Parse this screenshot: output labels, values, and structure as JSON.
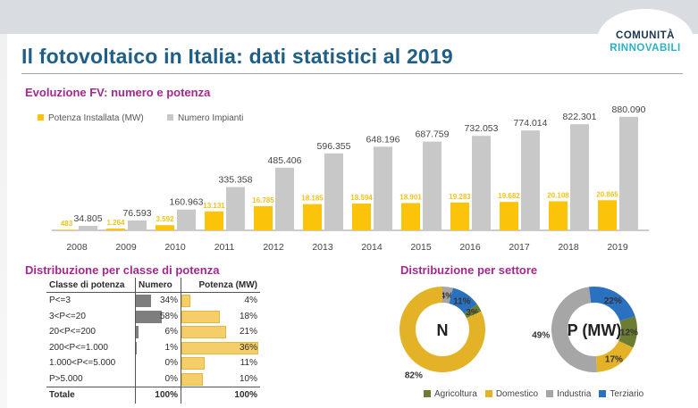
{
  "title": "Il fotovoltaico in Italia: dati statistici al 2019",
  "logo": {
    "line1": "COMUNITÀ",
    "line2": "RINNOVABILI"
  },
  "colors": {
    "title": "#1f5e86",
    "section": "#a32a8c",
    "power": "#fcc30b",
    "plants": "#c8c8c8",
    "agricoltura": "#6b7c33",
    "domestico": "#e3b227",
    "industria": "#a6a6a6",
    "terziario": "#2a72c0"
  },
  "sections": {
    "evolution": "Evoluzione FV: numero e potenza",
    "classes": "Distribuzione per classe di potenza",
    "sectors": "Distribuzione per settore"
  },
  "chart_data": [
    {
      "type": "bar",
      "title": "Evoluzione FV: numero e potenza",
      "categories": [
        "2008",
        "2009",
        "2010",
        "2011",
        "2012",
        "2013",
        "2014",
        "2015",
        "2016",
        "2017",
        "2018",
        "2019"
      ],
      "series": [
        {
          "name": "Potenza Installata (MW)",
          "values": [
            483,
            1264,
            3592,
            13131,
            16785,
            18185,
            18594,
            18901,
            19283,
            19682,
            20108,
            20865
          ],
          "labels": [
            "483",
            "1.264",
            "3.592",
            "13.131",
            "16.785",
            "18.185",
            "18.594",
            "18.901",
            "19.283",
            "19.682",
            "20.108",
            "20.865"
          ]
        },
        {
          "name": "Numero Impianti",
          "values": [
            34805,
            76593,
            160963,
            335358,
            485406,
            596355,
            648196,
            687759,
            732053,
            774014,
            822301,
            880090
          ],
          "labels": [
            "34.805",
            "76.593",
            "160.963",
            "335.358",
            "485.406",
            "596.355",
            "648.196",
            "687.759",
            "732.053",
            "774.014",
            "822.301",
            "880.090"
          ]
        }
      ],
      "legend": "top-left"
    },
    {
      "type": "table",
      "title": "Distribuzione per classe di potenza",
      "columns": [
        "Classe di potenza",
        "Numero",
        "Potenza (MW)"
      ],
      "rows": [
        {
          "classe": "P<=3",
          "numero": 34,
          "potenza": 4
        },
        {
          "classe": "3<P<=20",
          "numero": 58,
          "potenza": 18
        },
        {
          "classe": "20<P<=200",
          "numero": 6,
          "potenza": 21
        },
        {
          "classe": "200<P<=1.000",
          "numero": 1,
          "potenza": 36
        },
        {
          "classe": "1.000<P<=5.000",
          "numero": 0,
          "potenza": 11
        },
        {
          "classe": "P>5.000",
          "numero": 0,
          "potenza": 10
        }
      ],
      "total": {
        "label": "Totale",
        "numero": "100%",
        "potenza": "100%"
      }
    },
    {
      "type": "pie",
      "title": "Distribuzione per settore",
      "donuts": [
        {
          "center_label": "N",
          "slices": [
            {
              "name": "Agricoltura",
              "value": 3
            },
            {
              "name": "Domestico",
              "value": 82
            },
            {
              "name": "Industria",
              "value": 4
            },
            {
              "name": "Terziario",
              "value": 11
            }
          ]
        },
        {
          "center_label": "P (MW)",
          "slices": [
            {
              "name": "Agricoltura",
              "value": 12
            },
            {
              "name": "Domestico",
              "value": 17
            },
            {
              "name": "Industria",
              "value": 49
            },
            {
              "name": "Terziario",
              "value": 22
            }
          ]
        }
      ],
      "legend": [
        "Agricoltura",
        "Domestico",
        "Industria",
        "Terziario"
      ]
    }
  ]
}
